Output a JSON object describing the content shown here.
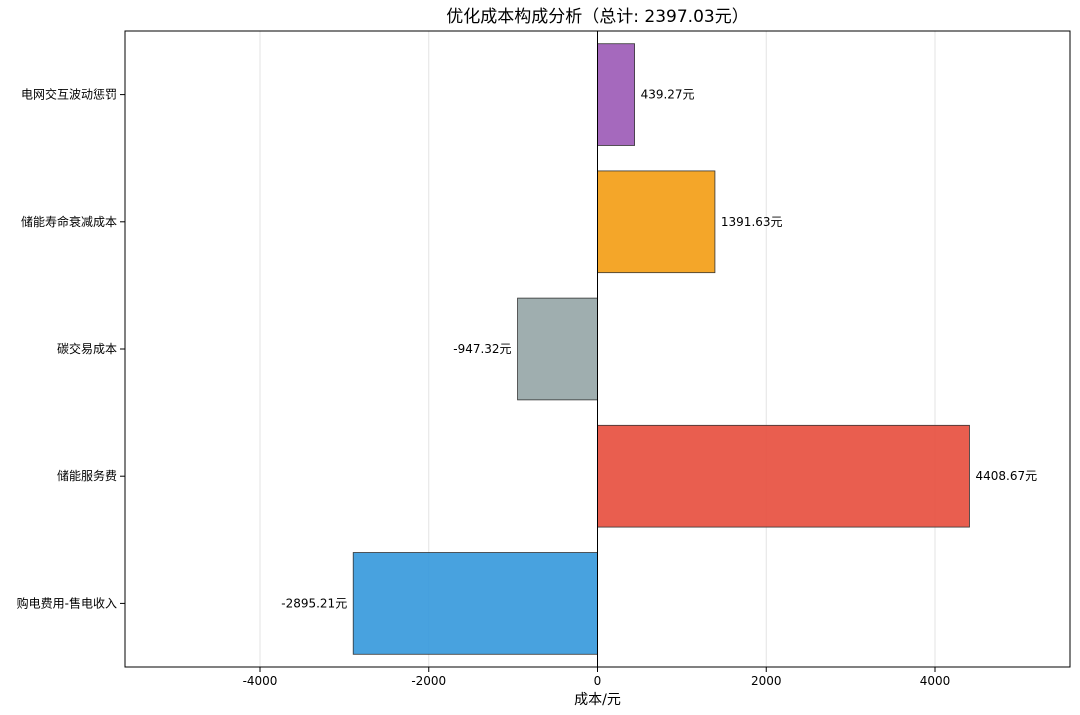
{
  "chart_data": {
    "type": "bar",
    "orientation": "horizontal",
    "title": "优化成本构成分析（总计: 2397.03元）",
    "xlabel": "成本/元",
    "ylabel": "",
    "categories": [
      "购电费用-售电收入",
      "储能服务费",
      "碳交易成本",
      "储能寿命衰减成本",
      "电网交互波动惩罚"
    ],
    "values": [
      -2895.21,
      4408.67,
      -947.32,
      1391.63,
      439.27
    ],
    "data_labels": [
      "-2895.21元",
      "4408.67元",
      "-947.32元",
      "1391.63元",
      "439.27元"
    ],
    "colors": [
      "#3498db",
      "#e74c3c",
      "#95a5a6",
      "#f39c12",
      "#9b59b6"
    ],
    "xlim": [
      -5600,
      5600
    ],
    "xticks": [
      -4000,
      -2000,
      0,
      2000,
      4000
    ],
    "xtick_labels": [
      "-4000",
      "-2000",
      "0",
      "2000",
      "4000"
    ],
    "grid": "vertical",
    "legend": "none"
  }
}
